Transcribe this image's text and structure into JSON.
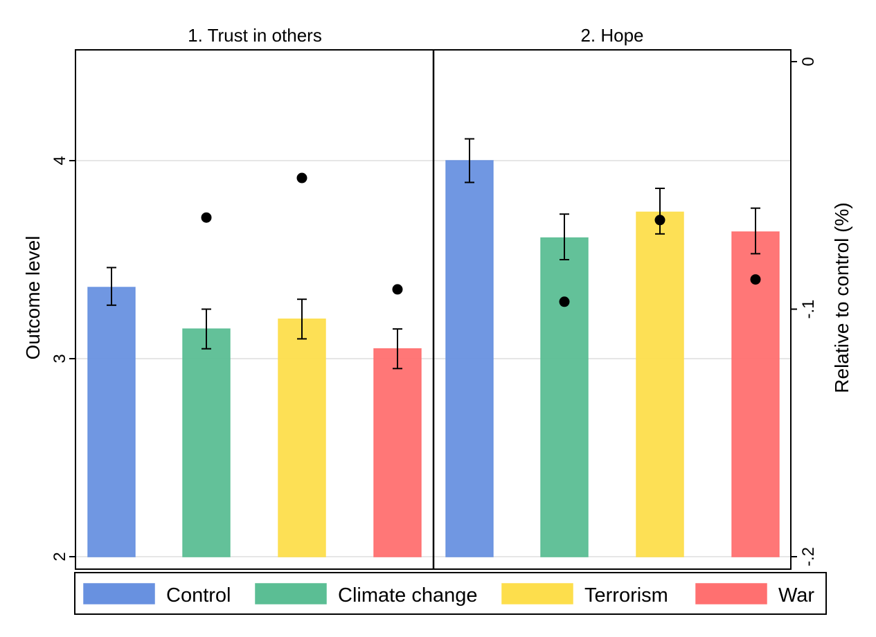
{
  "chart_data": {
    "type": "bar",
    "panels": [
      {
        "title": "1. Trust in others",
        "categories": [
          "Control",
          "Climate change",
          "Terrorism",
          "War"
        ],
        "values": [
          3.36,
          3.15,
          3.2,
          3.05
        ],
        "ci_low": [
          3.27,
          3.05,
          3.1,
          2.95
        ],
        "ci_high": [
          3.46,
          3.25,
          3.3,
          3.15
        ],
        "relative_points": [
          null,
          -0.063,
          -0.047,
          -0.092
        ]
      },
      {
        "title": "2. Hope",
        "categories": [
          "Control",
          "Climate change",
          "Terrorism",
          "War"
        ],
        "values": [
          4.0,
          3.61,
          3.74,
          3.64
        ],
        "ci_low": [
          3.89,
          3.5,
          3.63,
          3.53
        ],
        "ci_high": [
          4.11,
          3.73,
          3.86,
          3.76
        ],
        "relative_points": [
          null,
          -0.097,
          -0.064,
          -0.088
        ]
      }
    ],
    "ylabel": "Outcome level",
    "ylim": [
      2,
      4.6
    ],
    "yticks": [
      "2",
      "3",
      "4"
    ],
    "y2label": "Relative to control (%)",
    "y2lim": [
      -0.2,
      0.005
    ],
    "y2ticks": [
      "0",
      "-.1",
      "-.2"
    ],
    "legend": [
      {
        "name": "Control",
        "color": "#6891E0"
      },
      {
        "name": "Climate change",
        "color": "#5BBE94"
      },
      {
        "name": "Terrorism",
        "color": "#FDDE4C"
      },
      {
        "name": "War",
        "color": "#FF7070"
      }
    ],
    "legend_position": "bottom",
    "grid": true
  }
}
